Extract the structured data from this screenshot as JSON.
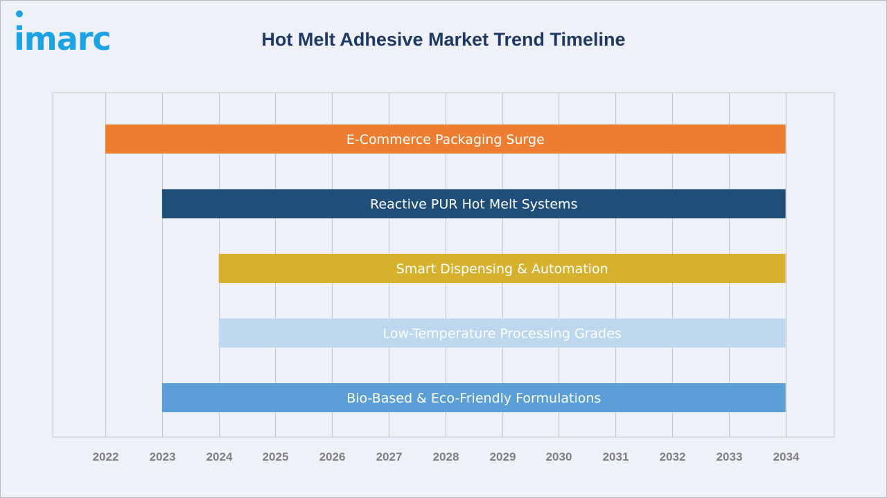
{
  "logo": {
    "text": "imarc"
  },
  "colors": {
    "background": "#eef2f8",
    "title": "#1f3864",
    "logo": "#1ba3e3",
    "grid": "#c6c6c6",
    "tick_label": "#7f7f7f"
  },
  "chart_data": {
    "type": "bar",
    "orientation": "horizontal",
    "subtype": "timeline",
    "title": "Hot Melt Adhesive Market Trend Timeline",
    "xlim": [
      2021.07,
      2034.86
    ],
    "ticks": [
      2022,
      2023,
      2024,
      2025,
      2026,
      2027,
      2028,
      2029,
      2030,
      2031,
      2032,
      2033,
      2034
    ],
    "grid": true,
    "legend": "none",
    "bars": [
      {
        "label": "E-Commerce Packaging Surge",
        "start": 2022,
        "end": 2034,
        "color": "#ed7d31"
      },
      {
        "label": "Reactive PUR Hot Melt Systems",
        "start": 2023,
        "end": 2034,
        "color": "#1f4e79"
      },
      {
        "label": "Smart Dispensing & Automation",
        "start": 2024,
        "end": 2034,
        "color": "#d6b12e"
      },
      {
        "label": "Low-Temperature Processing Grades",
        "start": 2024,
        "end": 2034,
        "color": "#bdd7ee"
      },
      {
        "label": "Bio-Based & Eco-Friendly Formulations",
        "start": 2023,
        "end": 2034,
        "color": "#5b9fd6"
      }
    ]
  }
}
